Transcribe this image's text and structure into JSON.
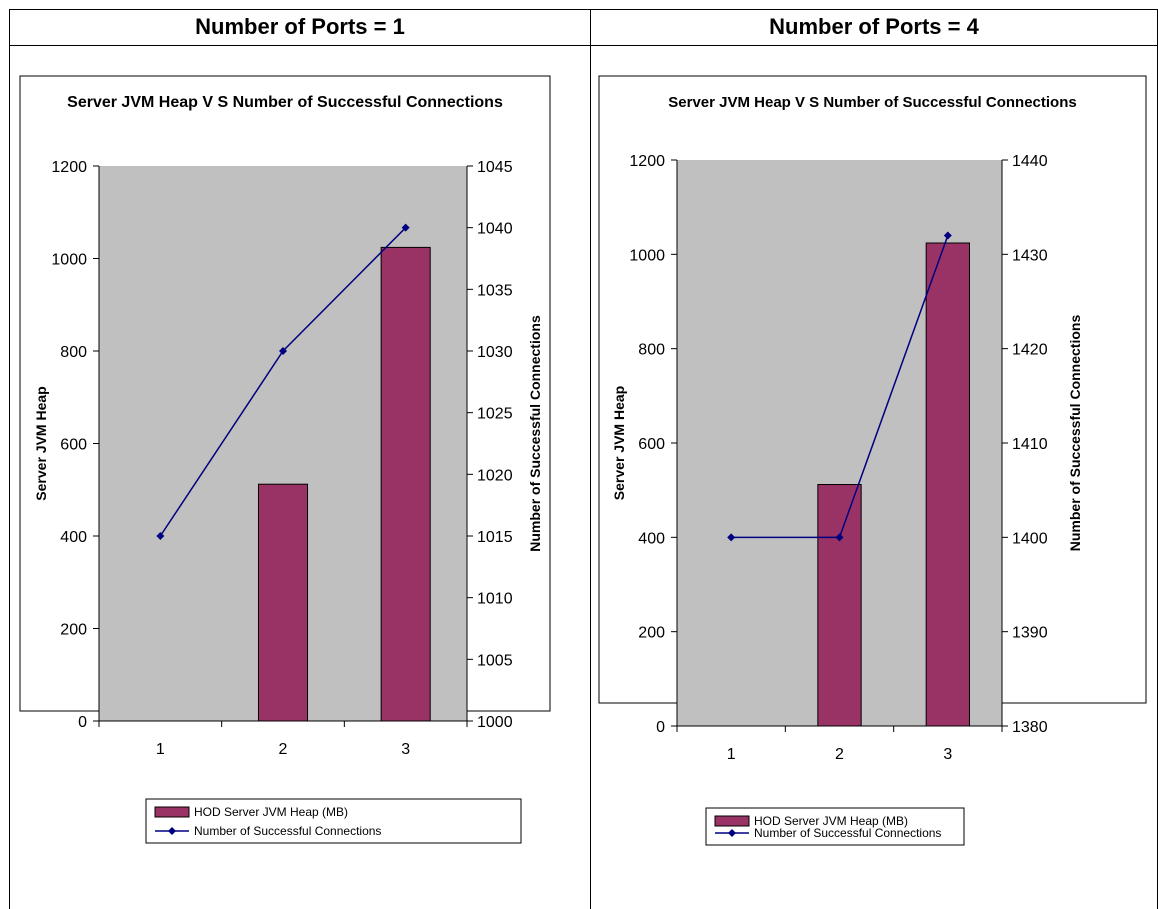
{
  "columns": [
    {
      "header": "Number of Ports = 1"
    },
    {
      "header": "Number of Ports = 4"
    }
  ],
  "chart_data": [
    {
      "type": "bar",
      "title": "Server JVM Heap V S Number of Successful Connections",
      "categories": [
        "1",
        "2",
        "3"
      ],
      "ylabel": "Server JVM Heap",
      "y2label": "Number of Successful Connections",
      "ylim": [
        0,
        1200
      ],
      "yticks": [
        "0",
        "200",
        "400",
        "600",
        "800",
        "1000",
        "1200"
      ],
      "y2lim": [
        1000,
        1045
      ],
      "y2ticks": [
        "1000",
        "1005",
        "1010",
        "1015",
        "1020",
        "1025",
        "1030",
        "1035",
        "1040",
        "1045"
      ],
      "grid": false,
      "legend_placement": "bottom",
      "series": [
        {
          "name": "HOD Server JVM Heap (MB)",
          "kind": "bar",
          "axis": "left",
          "color": "#993366",
          "values": [
            0,
            512,
            1024
          ]
        },
        {
          "name": "Number of Successful Connections",
          "kind": "line",
          "axis": "right",
          "color": "#000080",
          "values": [
            1015,
            1030,
            1040
          ]
        }
      ]
    },
    {
      "type": "bar",
      "title": "Server JVM Heap V S Number of Successful Connections",
      "categories": [
        "1",
        "2",
        "3"
      ],
      "ylabel": "Server JVM Heap",
      "y2label": "Number of Successful Connections",
      "ylim": [
        0,
        1200
      ],
      "yticks": [
        "0",
        "200",
        "400",
        "600",
        "800",
        "1000",
        "1200"
      ],
      "y2lim": [
        1380,
        1440
      ],
      "y2ticks": [
        "1380",
        "1390",
        "1400",
        "1410",
        "1420",
        "1430",
        "1440"
      ],
      "grid": false,
      "legend_placement": "bottom",
      "series": [
        {
          "name": "HOD Server JVM Heap (MB)",
          "kind": "bar",
          "axis": "left",
          "color": "#993366",
          "values": [
            0,
            512,
            1024
          ]
        },
        {
          "name": "Number of Successful Connections",
          "kind": "line",
          "axis": "right",
          "color": "#000080",
          "values": [
            1400,
            1400,
            1432
          ]
        }
      ]
    }
  ]
}
